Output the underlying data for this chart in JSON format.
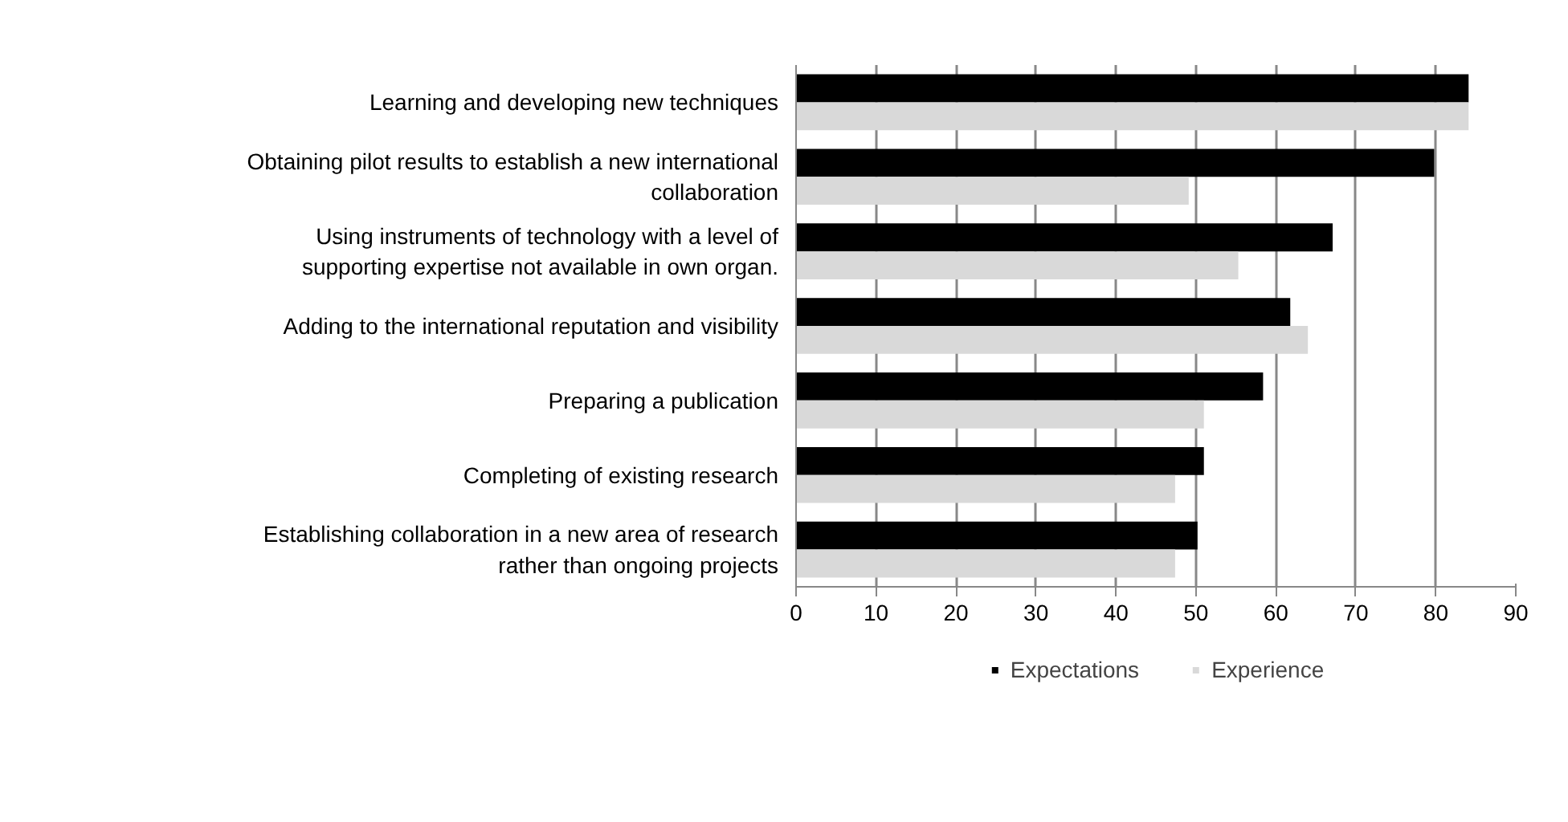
{
  "chart_data": {
    "type": "bar",
    "orientation": "horizontal",
    "categories": [
      "Learning and developing new techniques",
      "Obtaining pilot results to establish a new international collaboration",
      "Using instruments of technology with a level of supporting expertise not available in own organ.",
      "Adding to the international reputation and visibility",
      "Preparing a publication",
      "Completing of existing research",
      "Establishing collaboration in a new area of research rather than ongoing projects"
    ],
    "series": [
      {
        "name": "Expectations",
        "color": "#000000",
        "values": [
          84.1,
          79.8,
          67.1,
          61.8,
          58.4,
          51.0,
          50.2
        ]
      },
      {
        "name": "Experience",
        "color": "#d9d9d9",
        "values": [
          84.1,
          49.1,
          55.3,
          64.0,
          51.0,
          47.4,
          47.4
        ]
      }
    ],
    "xlim": [
      0,
      90
    ],
    "xticks": [
      0,
      10,
      20,
      30,
      40,
      50,
      60,
      70,
      80,
      90
    ],
    "grid": "x",
    "legend": "bottom"
  }
}
